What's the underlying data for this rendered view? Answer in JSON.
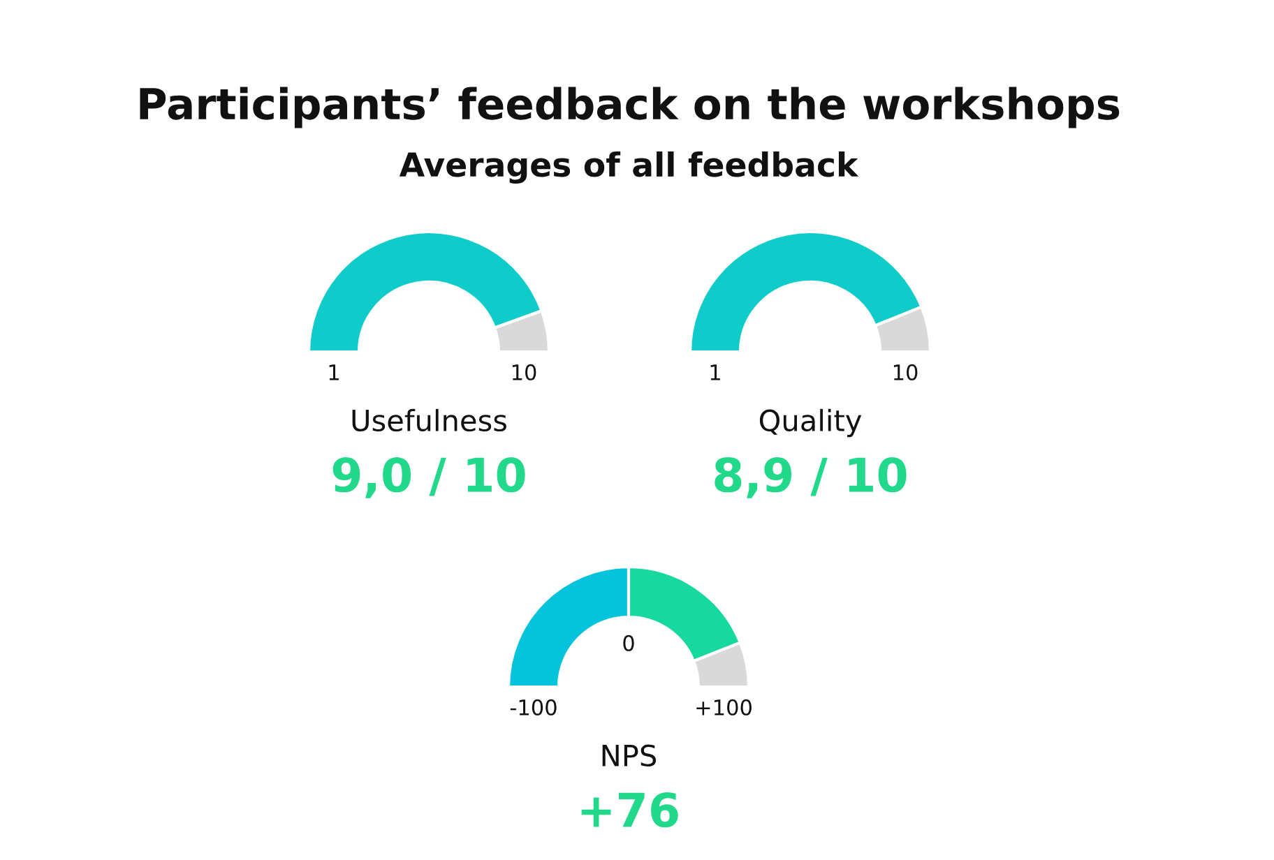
{
  "chart_data": [
    {
      "type": "donut",
      "title": "Participants’ feedback on the workshops",
      "subtitle": "Averages of all feedback",
      "xlabel": "Usefulness",
      "categories": [
        null,
        null
      ],
      "values": [
        88.9,
        11.1
      ],
      "colors": [
        "#0fcccb",
        "#d9d9d9"
      ],
      "annotations": [
        "9,0 / 10",
        "1",
        "10"
      ]
    },
    {
      "type": "donut",
      "xlabel": "Quality",
      "categories": [
        null,
        null
      ],
      "values": [
        87.8,
        12.2
      ],
      "colors": [
        "#0fcccb",
        "#d9d9d9"
      ],
      "annotations": [
        "8,9 / 10",
        "1",
        "10"
      ]
    },
    {
      "type": "donut",
      "xlabel": "NPS",
      "categories": [
        null,
        null,
        null
      ],
      "values": [
        50,
        38,
        12
      ],
      "colors": [
        "#06c3dc",
        "#17d9a0",
        "#d9d9d9"
      ],
      "annotations": [
        "+76",
        "-100",
        "+100",
        "0"
      ]
    }
  ]
}
